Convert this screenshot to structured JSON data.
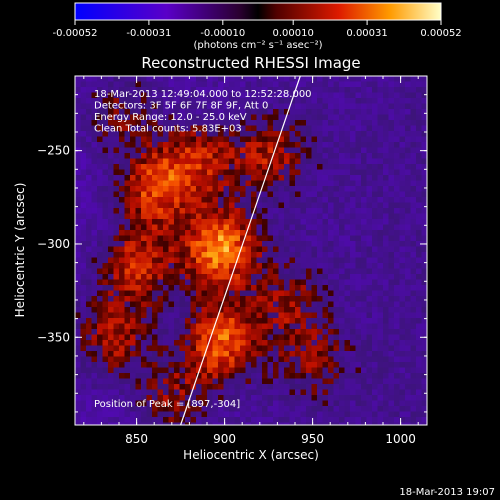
{
  "colorbar": {
    "tick_labels": [
      "-0.00052",
      "-0.00031",
      "-0.00010",
      "0.00010",
      "0.00031",
      "0.00052"
    ],
    "unit_label": "(photons cm⁻² s⁻¹ asec⁻²)",
    "min": -0.00052,
    "max": 0.00052
  },
  "chart_data": {
    "type": "heatmap",
    "title": "Reconstructed RHESSI Image",
    "xlabel": "Heliocentric X (arcsec)",
    "ylabel": "Heliocentric Y (arcsec)",
    "xlim": [
      815,
      1015
    ],
    "ylim": [
      -397,
      -210
    ],
    "x_ticks": [
      850,
      900,
      950,
      1000
    ],
    "y_ticks": [
      -250,
      -300,
      -350
    ],
    "annotations": [
      "18-Mar-2013 12:49:04.000 to 12:52:28.000",
      "Detectors: 3F 5F 6F 7F 8F 9F, Att 0",
      "Energy Range: 12.0 - 25.0 keV",
      "Clean    Total counts: 5.83E+03"
    ],
    "peak_label": "Position of Peak = [897,-304]",
    "peak": [
      897,
      -304
    ],
    "limb_line": [
      [
        875,
        -397
      ],
      [
        943,
        -210
      ]
    ],
    "hotspots": [
      {
        "x": 897,
        "y": -302,
        "value": 0.00052
      },
      {
        "x": 860,
        "y": -270,
        "value": 0.0004
      },
      {
        "x": 850,
        "y": -312,
        "value": 0.00036
      },
      {
        "x": 898,
        "y": -352,
        "value": 0.00044
      },
      {
        "x": 885,
        "y": -255,
        "value": 0.0003
      },
      {
        "x": 835,
        "y": -350,
        "value": 0.00032
      },
      {
        "x": 925,
        "y": -252,
        "value": 0.00028
      },
      {
        "x": 935,
        "y": -330,
        "value": 0.00022
      },
      {
        "x": 950,
        "y": -363,
        "value": 0.0002
      },
      {
        "x": 870,
        "y": -382,
        "value": 0.00024
      },
      {
        "x": 840,
        "y": -230,
        "value": 0.00022
      }
    ]
  },
  "footer": {
    "timestamp": "18-Mar-2013 19:07"
  }
}
